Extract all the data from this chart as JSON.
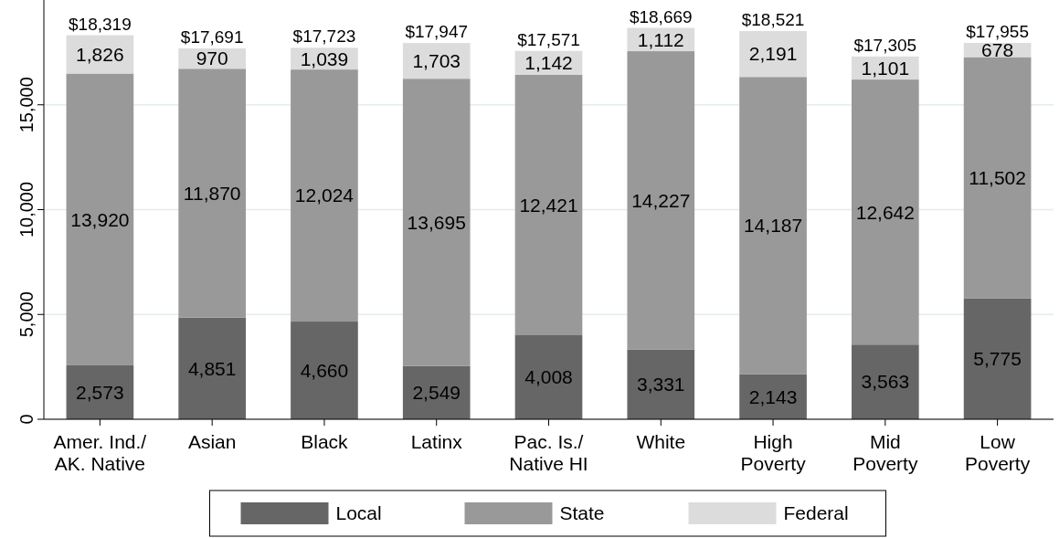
{
  "chart_data": {
    "type": "bar",
    "stacked": true,
    "categories": [
      "Amer. Ind./\nAK. Native",
      "Asian",
      "Black",
      "Latinx",
      "Pac. Is./\nNative HI",
      "White",
      "High\nPoverty",
      "Mid\nPoverty",
      "Low\nPoverty"
    ],
    "series": [
      {
        "name": "Local",
        "color": "#666666",
        "values": [
          2573,
          4851,
          4660,
          2549,
          4008,
          3331,
          2143,
          3563,
          5775
        ],
        "value_labels": [
          "2,573",
          "4,851",
          "4,660",
          "2,549",
          "4,008",
          "3,331",
          "2,143",
          "3,563",
          "5,775"
        ]
      },
      {
        "name": "State",
        "color": "#999999",
        "values": [
          13920,
          11870,
          12024,
          13695,
          12421,
          14227,
          14187,
          12642,
          11502
        ],
        "value_labels": [
          "13,920",
          "11,870",
          "12,024",
          "13,695",
          "12,421",
          "14,227",
          "14,187",
          "12,642",
          "11,502"
        ]
      },
      {
        "name": "Federal",
        "color": "#dcdcdc",
        "values": [
          1826,
          970,
          1039,
          1703,
          1142,
          1112,
          2191,
          1101,
          678
        ],
        "value_labels": [
          "1,826",
          "970",
          "1,039",
          "1,703",
          "1,142",
          "1,112",
          "2,191",
          "1,101",
          "678"
        ]
      }
    ],
    "totals": [
      "$18,319",
      "$17,691",
      "$17,723",
      "$17,947",
      "$17,571",
      "$18,669",
      "$18,521",
      "$17,305",
      "$17,955"
    ],
    "ylim": [
      0,
      20000
    ],
    "yticks": [
      {
        "value": 0,
        "label": "0"
      },
      {
        "value": 5000,
        "label": "5,000"
      },
      {
        "value": 10000,
        "label": "10,000"
      },
      {
        "value": 15000,
        "label": "15,000"
      }
    ],
    "grid": "y",
    "legend": "bottom"
  }
}
